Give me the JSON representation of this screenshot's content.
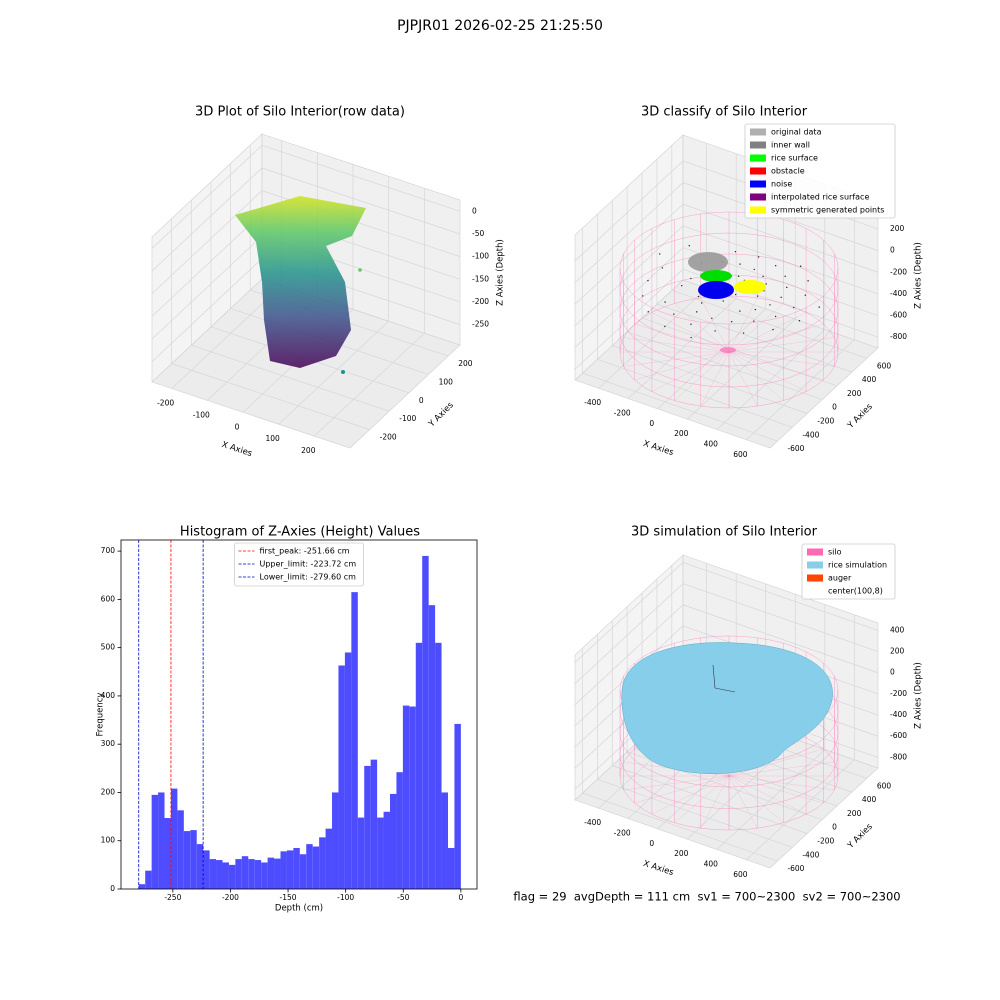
{
  "title": "PJPJR01 2026-02-25 21:25:50",
  "footer": "flag = 29  avgDepth = 111 cm  sv1 = 700~2300  sv2 = 700~2300",
  "chart_data": [
    {
      "type": "scatter3d",
      "title": "3D Plot of Silo Interior(row data)",
      "xlabel": "X Axies",
      "ylabel": "Y Axies",
      "zlabel": "Z Axies (Depth)",
      "xlim": [
        -255,
        300
      ],
      "ylim": [
        -300,
        260
      ],
      "zlim": [
        -295,
        25
      ],
      "xticks": [
        -200,
        -100,
        0,
        100,
        200
      ],
      "yticks": [
        -200,
        -100,
        0,
        100,
        200
      ],
      "zticks": [
        -250,
        -200,
        -150,
        -100,
        -50,
        0
      ]
    },
    {
      "type": "scatter3d",
      "title": "3D classify of Silo Interior",
      "xlabel": "X Axies",
      "ylabel": "Y Axies",
      "zlabel": "Z Axies (Depth)",
      "xlim": [
        -560,
        760
      ],
      "ylim": [
        -700,
        750
      ],
      "zlim": [
        -900,
        440
      ],
      "xticks": [
        -400,
        -200,
        0,
        200,
        400,
        600
      ],
      "yticks": [
        -600,
        -400,
        -200,
        0,
        200,
        400,
        600
      ],
      "zticks": [
        -800,
        -600,
        -400,
        -200,
        0,
        200
      ],
      "legend": [
        {
          "name": "original data",
          "color": "#b0b0b0"
        },
        {
          "name": "inner wall",
          "color": "#808080"
        },
        {
          "name": "rice surface",
          "color": "#00ff00"
        },
        {
          "name": "obstacle",
          "color": "#ff0000"
        },
        {
          "name": "noise",
          "color": "#0000ff"
        },
        {
          "name": "interpolated rice surface",
          "color": "#800080"
        },
        {
          "name": "symmetric generated points",
          "color": "#ffff00"
        }
      ]
    },
    {
      "type": "histogram",
      "title": "Histogram of Z-Axies (Height) Values",
      "xlabel": "Depth (cm)",
      "ylabel": "Frequency",
      "color": "#4d4dff",
      "bins": [
        -279.6,
        -274.01,
        -268.42,
        -262.82,
        -257.23,
        -251.64,
        -246.05,
        -240.46,
        -234.86,
        -229.27,
        -223.68,
        -218.09,
        -212.5,
        -206.9,
        -201.31,
        -195.72,
        -190.13,
        -184.54,
        -178.94,
        -173.35,
        -167.76,
        -162.17,
        -156.58,
        -150.98,
        -145.39,
        -139.8,
        -134.21,
        -128.62,
        -123.02,
        -117.43,
        -111.84,
        -106.25,
        -100.66,
        -95.06,
        -89.47,
        -83.88,
        -78.29,
        -72.7,
        -67.1,
        -61.51,
        -55.92,
        -50.33,
        -44.74,
        -39.14,
        -33.55,
        -27.96,
        -22.37,
        -16.78,
        -11.18,
        -5.59,
        0
      ],
      "counts": [
        10,
        38,
        195,
        200,
        147,
        208,
        163,
        120,
        122,
        93,
        80,
        62,
        60,
        55,
        50,
        62,
        68,
        62,
        60,
        55,
        65,
        63,
        78,
        80,
        85,
        72,
        93,
        88,
        107,
        125,
        200,
        463,
        490,
        615,
        148,
        255,
        268,
        148,
        160,
        197,
        242,
        380,
        378,
        510,
        690,
        588,
        510,
        200,
        85,
        342
      ],
      "xlim": [
        -295,
        14
      ],
      "ylim": [
        0,
        723
      ],
      "xticks": [
        -250,
        -200,
        -150,
        -100,
        -50,
        0
      ],
      "yticks": [
        0,
        100,
        200,
        300,
        400,
        500,
        600,
        700
      ],
      "lines": [
        {
          "label": "first_peak: -251.66 cm",
          "value": -251.66,
          "color": "#ff0000"
        },
        {
          "label": "Upper_limit: -223.72 cm",
          "value": -223.72,
          "color": "#0000cc"
        },
        {
          "label": "Lower_limit: -279.60 cm",
          "value": -279.6,
          "color": "#0000cc"
        }
      ],
      "legend_position": "upper center"
    },
    {
      "type": "surface3d",
      "title": "3D simulation of Silo Interior",
      "xlabel": "X Axies",
      "ylabel": "Y Axies",
      "zlabel": "Z Axies (Depth)",
      "xlim": [
        -560,
        760
      ],
      "ylim": [
        -700,
        750
      ],
      "zlim": [
        -900,
        470
      ],
      "xticks": [
        -400,
        -200,
        0,
        200,
        400,
        600
      ],
      "yticks": [
        -600,
        -400,
        -200,
        0,
        200,
        400,
        600
      ],
      "zticks": [
        -800,
        -600,
        -400,
        -200,
        0,
        200,
        400
      ],
      "legend": [
        {
          "name": "silo",
          "color": "#ff69b4"
        },
        {
          "name": "rice simulation",
          "color": "#87ceeb"
        },
        {
          "name": "auger",
          "color": "#ff4500"
        },
        {
          "name": "center(100,8)",
          "color": "#ffffff"
        }
      ]
    }
  ]
}
